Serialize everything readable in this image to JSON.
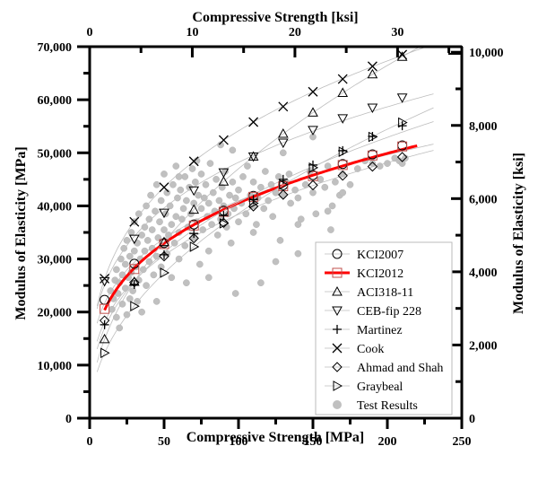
{
  "chart_data": {
    "type": "scatter",
    "title": "",
    "xlabel": "Compressive Strength [MPa]",
    "ylabel": "Modulus of Elasticity [MPa]",
    "x2label": "Compressive Strength [ksi]",
    "y2label": "Modulus of Elasticity [ksi]",
    "xlim": [
      0,
      250
    ],
    "ylim": [
      0,
      70000
    ],
    "x2lim_ksi": [
      0,
      36.26
    ],
    "y2lim_ksi": [
      0,
      10152.5
    ],
    "x_ticks": [
      0,
      50,
      100,
      150,
      200,
      250
    ],
    "x_tick_labels": [
      "0",
      "50",
      "100",
      "150",
      "200",
      "250"
    ],
    "y_ticks": [
      0,
      10000,
      20000,
      30000,
      40000,
      50000,
      60000,
      70000
    ],
    "y_tick_labels": [
      "0",
      "10,000",
      "20,000",
      "30,000",
      "40,000",
      "50,000",
      "60,000",
      "70,000"
    ],
    "x2_ticks": [
      0,
      10,
      20,
      30
    ],
    "x2_tick_labels": [
      "0",
      "10",
      "20",
      "30"
    ],
    "y2_ticks": [
      0,
      2000,
      4000,
      6000,
      8000,
      10000
    ],
    "y2_tick_labels": [
      "0",
      "2,000",
      "4,000",
      "6,000",
      "8,000",
      "10,000"
    ],
    "grid": false,
    "legend_position": "bottom-right",
    "model_x": [
      10,
      30,
      50,
      70,
      90,
      110,
      130,
      150,
      170,
      190,
      210
    ],
    "series": [
      {
        "name": "KCI2007",
        "marker": "circle",
        "color": "#000000",
        "values": [
          22300,
          29100,
          33000,
          36500,
          39100,
          41900,
          43900,
          45800,
          47900,
          49700,
          51400
        ]
      },
      {
        "name": "KCI2012",
        "marker": "square",
        "color": "#c0504d",
        "line_color": "#ff0000",
        "line_range": [
          10,
          220
        ],
        "values": [
          20600,
          28100,
          32800,
          36300,
          38900,
          41700,
          43700,
          45600,
          47700,
          49500,
          51200
        ]
      },
      {
        "name": "ACI318-11",
        "marker": "triangle-up",
        "color": "#000000",
        "values": [
          14900,
          25700,
          33200,
          39300,
          44600,
          49300,
          53600,
          57600,
          61300,
          64800,
          68100
        ]
      },
      {
        "name": "CEB-fip 228",
        "marker": "triangle-down",
        "color": "#000000",
        "values": [
          25800,
          33800,
          38700,
          42900,
          46300,
          49300,
          51900,
          54300,
          56500,
          58500,
          60400
        ]
      },
      {
        "name": "Martinez",
        "marker": "plus",
        "color": "#000000",
        "values": [
          17600,
          25200,
          30800,
          34800,
          38200,
          41200,
          45000,
          47700,
          50400,
          53100,
          55100
        ]
      },
      {
        "name": "Cook",
        "marker": "cross",
        "color": "#000000",
        "values": [
          26300,
          37000,
          43500,
          48400,
          52400,
          55800,
          58700,
          61500,
          63900,
          66300,
          68500
        ]
      },
      {
        "name": "Ahmad and Shah",
        "marker": "diamond",
        "color": "#000000",
        "values": [
          18400,
          25600,
          30500,
          33900,
          36800,
          39900,
          42100,
          43900,
          45700,
          47400,
          49200
        ]
      },
      {
        "name": "Graybeal",
        "marker": "triangle-right",
        "color": "#000000",
        "values": [
          12300,
          21100,
          27400,
          32300,
          36700,
          40500,
          44000,
          47200,
          50200,
          53000,
          55700
        ]
      },
      {
        "name": "Test Results",
        "marker": "filled-circle",
        "color": "#c0c0c0",
        "points": [
          [
            14,
            24000
          ],
          [
            15,
            20500
          ],
          [
            16,
            22500
          ],
          [
            17,
            26000
          ],
          [
            18,
            19000
          ],
          [
            18,
            28000
          ],
          [
            19,
            23500
          ],
          [
            20,
            17000
          ],
          [
            20,
            25500
          ],
          [
            21,
            30000
          ],
          [
            22,
            21500
          ],
          [
            22,
            27000
          ],
          [
            23,
            32000
          ],
          [
            24,
            24500
          ],
          [
            24,
            29000
          ],
          [
            25,
            19500
          ],
          [
            25,
            33500
          ],
          [
            26,
            26500
          ],
          [
            27,
            22500
          ],
          [
            27,
            30500
          ],
          [
            28,
            35000
          ],
          [
            28,
            27500
          ],
          [
            29,
            24000
          ],
          [
            30,
            31500
          ],
          [
            30,
            37000
          ],
          [
            31,
            28500
          ],
          [
            32,
            33000
          ],
          [
            32,
            22000
          ],
          [
            33,
            26000
          ],
          [
            33,
            38500
          ],
          [
            34,
            30000
          ],
          [
            35,
            34500
          ],
          [
            35,
            20000
          ],
          [
            36,
            28000
          ],
          [
            37,
            36000
          ],
          [
            37,
            31500
          ],
          [
            38,
            40000
          ],
          [
            38,
            25000
          ],
          [
            39,
            33500
          ],
          [
            40,
            29500
          ],
          [
            40,
            37500
          ],
          [
            41,
            42000
          ],
          [
            42,
            32000
          ],
          [
            42,
            35500
          ],
          [
            43,
            27000
          ],
          [
            44,
            39000
          ],
          [
            45,
            30500
          ],
          [
            45,
            44000
          ],
          [
            46,
            34000
          ],
          [
            47,
            37000
          ],
          [
            48,
            41000
          ],
          [
            48,
            28500
          ],
          [
            49,
            32500
          ],
          [
            50,
            35500
          ],
          [
            50,
            46000
          ],
          [
            51,
            38500
          ],
          [
            52,
            31000
          ],
          [
            52,
            42500
          ],
          [
            53,
            34500
          ],
          [
            54,
            40000
          ],
          [
            55,
            36500
          ],
          [
            55,
            26500
          ],
          [
            56,
            44000
          ],
          [
            57,
            33000
          ],
          [
            58,
            38000
          ],
          [
            58,
            47500
          ],
          [
            59,
            41500
          ],
          [
            60,
            35000
          ],
          [
            60,
            30000
          ],
          [
            61,
            43000
          ],
          [
            62,
            37500
          ],
          [
            63,
            39500
          ],
          [
            64,
            45500
          ],
          [
            64,
            32500
          ],
          [
            65,
            41000
          ],
          [
            66,
            36000
          ],
          [
            67,
            43500
          ],
          [
            68,
            38500
          ],
          [
            69,
            47000
          ],
          [
            70,
            34000
          ],
          [
            70,
            40500
          ],
          [
            71,
            44500
          ],
          [
            72,
            37000
          ],
          [
            73,
            42000
          ],
          [
            74,
            29000
          ],
          [
            75,
            39500
          ],
          [
            75,
            46000
          ],
          [
            76,
            35500
          ],
          [
            77,
            41500
          ],
          [
            78,
            44000
          ],
          [
            79,
            38000
          ],
          [
            80,
            40500
          ],
          [
            80,
            31500
          ],
          [
            81,
            48000
          ],
          [
            82,
            36500
          ],
          [
            83,
            42500
          ],
          [
            84,
            39000
          ],
          [
            85,
            45000
          ],
          [
            86,
            34500
          ],
          [
            87,
            41000
          ],
          [
            88,
            37500
          ],
          [
            89,
            43500
          ],
          [
            90,
            40000
          ],
          [
            91,
            46500
          ],
          [
            92,
            36000
          ],
          [
            93,
            38500
          ],
          [
            94,
            42000
          ],
          [
            95,
            33000
          ],
          [
            96,
            44500
          ],
          [
            97,
            39500
          ],
          [
            98,
            41500
          ],
          [
            100,
            37000
          ],
          [
            100,
            43000
          ],
          [
            102,
            40500
          ],
          [
            103,
            45500
          ],
          [
            105,
            38500
          ],
          [
            106,
            47500
          ],
          [
            108,
            42000
          ],
          [
            110,
            40000
          ],
          [
            110,
            44500
          ],
          [
            112,
            36500
          ],
          [
            113,
            41500
          ],
          [
            115,
            43500
          ],
          [
            117,
            39500
          ],
          [
            118,
            46500
          ],
          [
            120,
            41000
          ],
          [
            122,
            44000
          ],
          [
            123,
            38000
          ],
          [
            125,
            42500
          ],
          [
            127,
            45500
          ],
          [
            128,
            33500
          ],
          [
            130,
            42000
          ],
          [
            132,
            44500
          ],
          [
            134,
            46000
          ],
          [
            135,
            40500
          ],
          [
            138,
            43000
          ],
          [
            140,
            41500
          ],
          [
            142,
            37500
          ],
          [
            145,
            44000
          ],
          [
            148,
            46500
          ],
          [
            150,
            42500
          ],
          [
            152,
            38500
          ],
          [
            155,
            45000
          ],
          [
            158,
            43500
          ],
          [
            160,
            47500
          ],
          [
            163,
            40000
          ],
          [
            165,
            44500
          ],
          [
            168,
            42000
          ],
          [
            170,
            46000
          ],
          [
            175,
            44000
          ],
          [
            180,
            47000
          ],
          [
            185,
            48500
          ],
          [
            190,
            48000
          ],
          [
            195,
            47500
          ],
          [
            200,
            48000
          ],
          [
            205,
            49000
          ],
          [
            208,
            48500
          ],
          [
            210,
            48000
          ],
          [
            212,
            49000
          ],
          [
            98,
            23500
          ],
          [
            115,
            25500
          ],
          [
            80,
            26500
          ],
          [
            140,
            36500
          ],
          [
            125,
            29500
          ],
          [
            160,
            39000
          ],
          [
            60,
            45500
          ],
          [
            45,
            22000
          ],
          [
            72,
            48500
          ],
          [
            96,
            50500
          ],
          [
            130,
            50000
          ],
          [
            150,
            53000
          ],
          [
            88,
            51500
          ],
          [
            110,
            35000
          ],
          [
            140,
            31000
          ],
          [
            170,
            42500
          ],
          [
            162,
            35500
          ],
          [
            65,
            25500
          ]
        ]
      }
    ]
  }
}
